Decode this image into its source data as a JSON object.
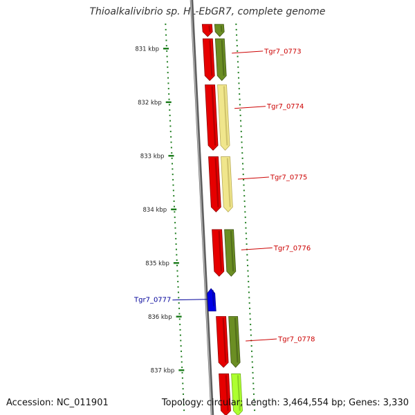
{
  "header": {
    "title": "Thioalkalivibrio sp. HL-EbGR7, complete genome"
  },
  "footer": {
    "accession": "Accession: NC_011901",
    "summary": "Topology: circular; Length: 3,464,554 bp; Genes: 3,330"
  },
  "colors": {
    "backbone": "#808080",
    "ruler": "#1e7d1e",
    "forward_gene_red": "#e60000",
    "olive_gene": "#6b8e23",
    "pale_gene": "#f0e68c",
    "lime_gene": "#adff2f",
    "blue_gene": "#0000e6",
    "right_label": "#cc0000",
    "left_label": "#000099"
  },
  "ruler": {
    "ticks": [
      {
        "kbp": 831,
        "label": "831 kbp"
      },
      {
        "kbp": 832,
        "label": "832 kbp"
      },
      {
        "kbp": 833,
        "label": "833 kbp"
      },
      {
        "kbp": 834,
        "label": "834 kbp"
      },
      {
        "kbp": 835,
        "label": "835 kbp"
      },
      {
        "kbp": 836,
        "label": "836 kbp"
      },
      {
        "kbp": 837,
        "label": "837 kbp"
      }
    ]
  },
  "genes": [
    {
      "id": "g-top",
      "label": "",
      "color": "red",
      "track": 1,
      "start_kbp": 830.55,
      "end_kbp": 830.78,
      "strand": "+"
    },
    {
      "id": "g-top-olive",
      "label": "",
      "color": "olive",
      "track": 2,
      "start_kbp": 830.55,
      "end_kbp": 830.78,
      "strand": "+"
    },
    {
      "id": "Tgr7_0773",
      "label": "Tgr7_0773",
      "color": "red",
      "track": 1,
      "start_kbp": 830.82,
      "end_kbp": 831.6,
      "strand": "+"
    },
    {
      "id": "Tgr7_0773b",
      "label": "",
      "color": "olive",
      "track": 2,
      "start_kbp": 830.82,
      "end_kbp": 831.6,
      "strand": "+"
    },
    {
      "id": "Tgr7_0774",
      "label": "Tgr7_0774",
      "color": "red",
      "track": 1,
      "start_kbp": 831.68,
      "end_kbp": 832.9,
      "strand": "+"
    },
    {
      "id": "Tgr7_0774b",
      "label": "",
      "color": "pale",
      "track": 2,
      "start_kbp": 831.68,
      "end_kbp": 832.9,
      "strand": "+"
    },
    {
      "id": "Tgr7_0775",
      "label": "Tgr7_0775",
      "color": "red",
      "track": 1,
      "start_kbp": 833.02,
      "end_kbp": 834.05,
      "strand": "+"
    },
    {
      "id": "Tgr7_0775b",
      "label": "",
      "color": "pale",
      "track": 2,
      "start_kbp": 833.02,
      "end_kbp": 834.05,
      "strand": "+"
    },
    {
      "id": "Tgr7_0776",
      "label": "Tgr7_0776",
      "color": "red",
      "track": 1,
      "start_kbp": 834.38,
      "end_kbp": 835.25,
      "strand": "+"
    },
    {
      "id": "Tgr7_0776b",
      "label": "",
      "color": "olive",
      "track": 2,
      "start_kbp": 834.38,
      "end_kbp": 835.25,
      "strand": "+"
    },
    {
      "id": "Tgr7_0777",
      "label": "Tgr7_0777",
      "color": "blue",
      "track": 0,
      "start_kbp": 835.48,
      "end_kbp": 835.9,
      "strand": "-"
    },
    {
      "id": "Tgr7_0778",
      "label": "Tgr7_0778",
      "color": "red",
      "track": 1,
      "start_kbp": 836.0,
      "end_kbp": 836.95,
      "strand": "+"
    },
    {
      "id": "Tgr7_0778b",
      "label": "",
      "color": "olive",
      "track": 2,
      "start_kbp": 836.0,
      "end_kbp": 836.95,
      "strand": "+"
    },
    {
      "id": "g-bottom",
      "label": "",
      "color": "red",
      "track": 1,
      "start_kbp": 837.07,
      "end_kbp": 837.85,
      "strand": "+"
    },
    {
      "id": "g-bottom-lime",
      "label": "",
      "color": "lime",
      "track": 2,
      "start_kbp": 837.07,
      "end_kbp": 837.85,
      "strand": "+"
    }
  ],
  "labeled_genes": [
    {
      "id": "Tgr7_0773",
      "label": "Tgr7_0773",
      "side": "right",
      "at_kbp": 831.05
    },
    {
      "id": "Tgr7_0774",
      "label": "Tgr7_0774",
      "side": "right",
      "at_kbp": 832.08
    },
    {
      "id": "Tgr7_0775",
      "label": "Tgr7_0775",
      "side": "right",
      "at_kbp": 833.4
    },
    {
      "id": "Tgr7_0776",
      "label": "Tgr7_0776",
      "side": "right",
      "at_kbp": 834.72
    },
    {
      "id": "Tgr7_0777",
      "label": "Tgr7_0777",
      "side": "left",
      "at_kbp": 835.68
    },
    {
      "id": "Tgr7_0778",
      "label": "Tgr7_0778",
      "side": "right",
      "at_kbp": 836.42
    }
  ]
}
